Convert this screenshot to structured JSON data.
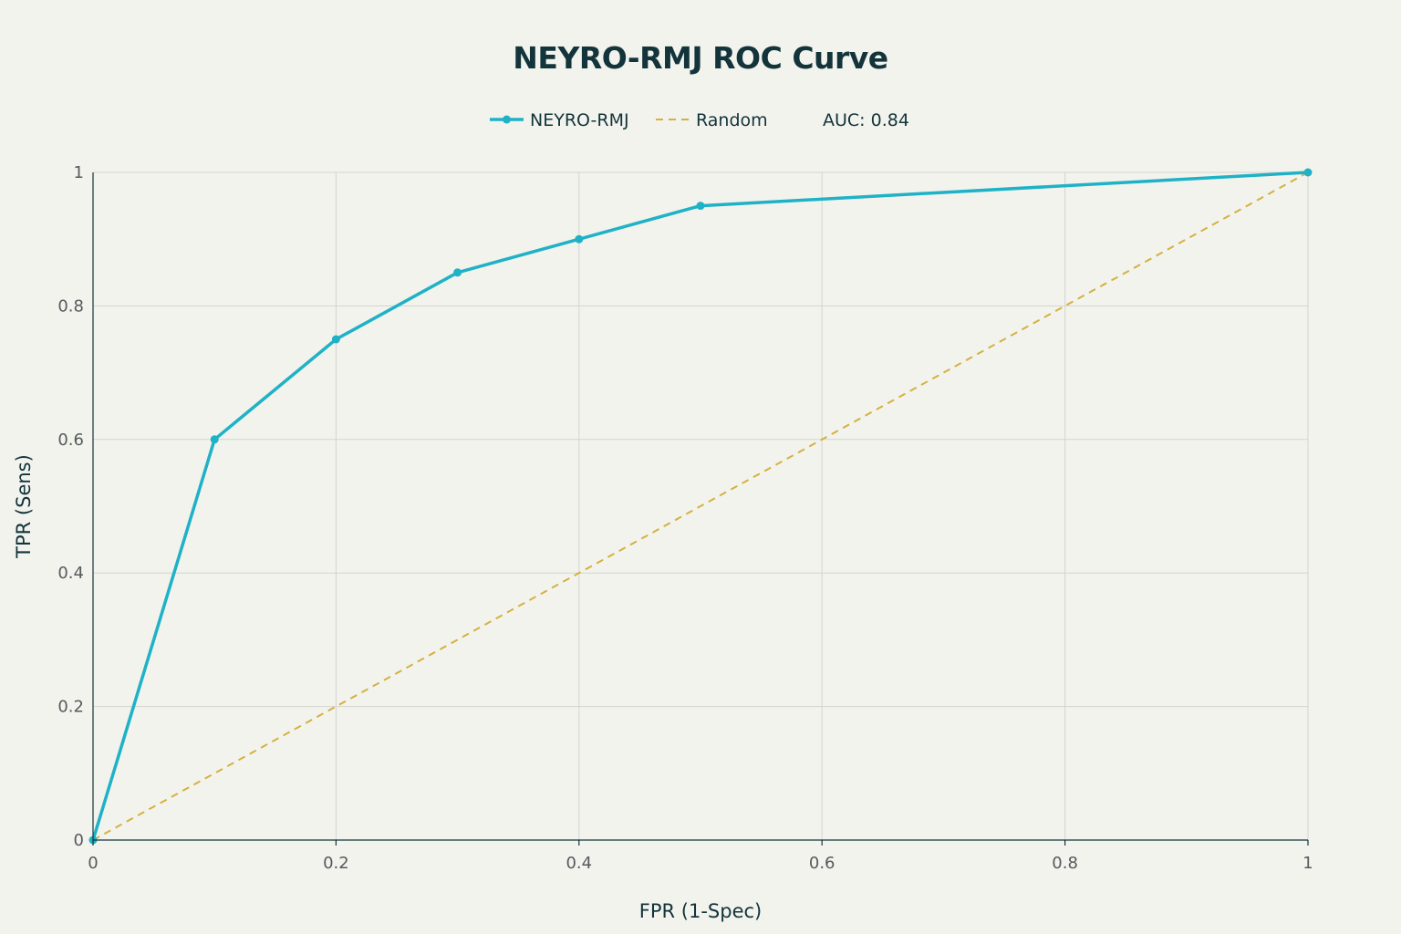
{
  "chart_data": {
    "type": "line",
    "title": "NEYRO-RMJ ROC Curve",
    "xlabel": "FPR (1-Spec)",
    "ylabel": "TPR (Sens)",
    "xlim": [
      0,
      1
    ],
    "ylim": [
      0,
      1
    ],
    "x_ticks": [
      "0",
      "0.2",
      "0.4",
      "0.6",
      "0.8",
      "1"
    ],
    "y_ticks": [
      "0",
      "0.2",
      "0.4",
      "0.6",
      "0.8",
      "1"
    ],
    "grid": true,
    "legend_position": "top-center",
    "series": [
      {
        "name": "NEYRO-RMJ",
        "style": "solid-with-markers",
        "color": "#1fb2c6",
        "x": [
          0,
          0.1,
          0.2,
          0.3,
          0.4,
          0.5,
          1
        ],
        "y": [
          0,
          0.6,
          0.75,
          0.85,
          0.9,
          0.95,
          1
        ]
      },
      {
        "name": "Random",
        "style": "dashed",
        "color": "#d4b13f",
        "x": [
          0,
          1
        ],
        "y": [
          0,
          1
        ]
      }
    ],
    "annotation": "AUC: 0.84"
  }
}
